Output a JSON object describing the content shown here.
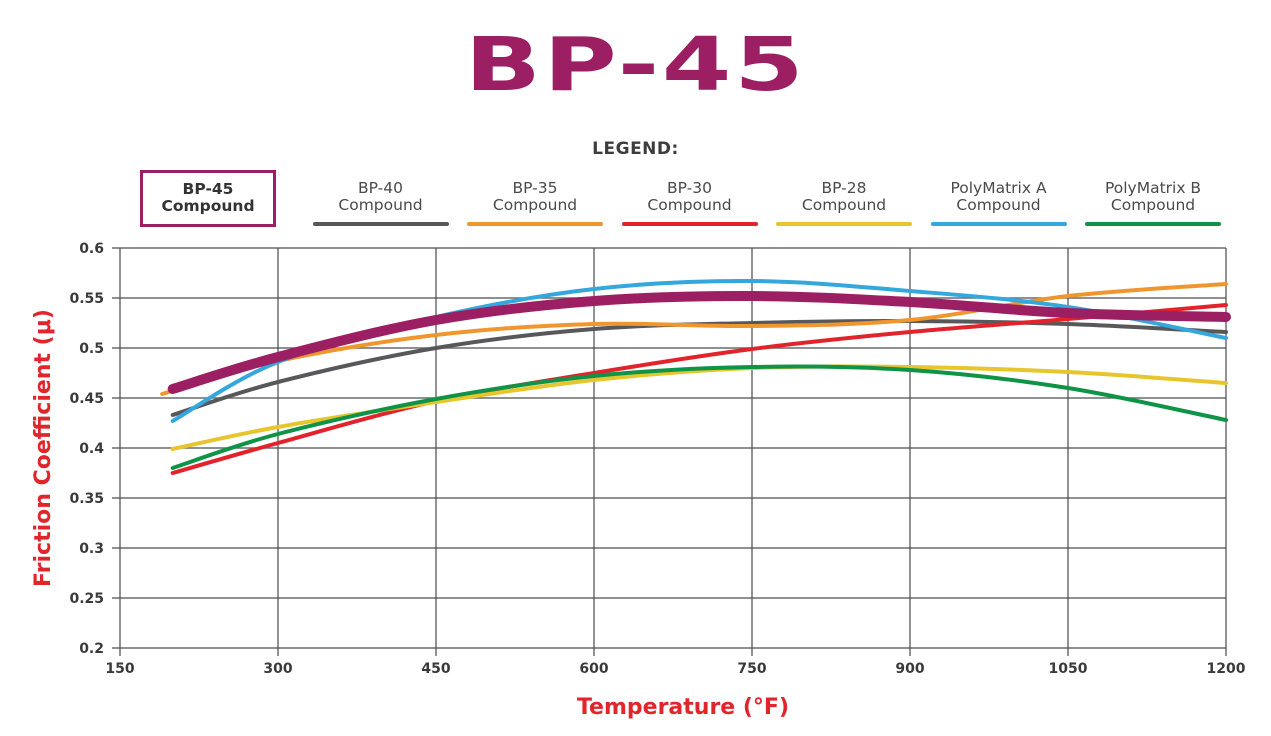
{
  "chart_data": {
    "type": "line",
    "title": "BP-45",
    "legend_title": "LEGEND:",
    "legend_placement": "top",
    "xlabel": "Temperature (°F)",
    "ylabel": "Friction Coefficient (μ)",
    "xlim": [
      150,
      1200
    ],
    "ylim": [
      0.2,
      0.6
    ],
    "xticks": [
      "150",
      "300",
      "450",
      "600",
      "750",
      "900",
      "1050",
      "1200"
    ],
    "yticks": [
      "0.6",
      "0.55",
      "0.5",
      "0.45",
      "0.4",
      "0.35",
      "0.3",
      "0.25",
      "0.2"
    ],
    "grid": true,
    "series": [
      {
        "name": "BP-45 Compound",
        "line1": "BP-45",
        "line2": "Compound",
        "color": "#9c1f63",
        "highlighted": true,
        "x": [
          200,
          300,
          450,
          600,
          750,
          900,
          1050,
          1200
        ],
        "y": [
          0.459,
          0.491,
          0.528,
          0.547,
          0.552,
          0.546,
          0.535,
          0.531
        ]
      },
      {
        "name": "BP-40 Compound",
        "line1": "BP-40",
        "line2": "Compound",
        "color": "#58585a",
        "highlighted": false,
        "x": [
          200,
          300,
          450,
          600,
          750,
          900,
          1050,
          1200
        ],
        "y": [
          0.433,
          0.466,
          0.5,
          0.519,
          0.525,
          0.527,
          0.524,
          0.516
        ]
      },
      {
        "name": "BP-35 Compound",
        "line1": "BP-35",
        "line2": "Compound",
        "color": "#f0962e",
        "highlighted": false,
        "x": [
          190,
          300,
          450,
          600,
          750,
          900,
          1050,
          1200
        ],
        "y": [
          0.454,
          0.487,
          0.513,
          0.524,
          0.522,
          0.528,
          0.552,
          0.564
        ]
      },
      {
        "name": "BP-30 Compound",
        "line1": "BP-30",
        "line2": "Compound",
        "color": "#e3232b",
        "highlighted": false,
        "x": [
          200,
          300,
          450,
          600,
          750,
          900,
          1050,
          1200
        ],
        "y": [
          0.375,
          0.405,
          0.447,
          0.475,
          0.499,
          0.516,
          0.529,
          0.543
        ]
      },
      {
        "name": "BP-28 Compound",
        "line1": "BP-28",
        "line2": "Compound",
        "color": "#e6c62c",
        "highlighted": false,
        "x": [
          200,
          300,
          450,
          600,
          750,
          900,
          1050,
          1200
        ],
        "y": [
          0.399,
          0.421,
          0.446,
          0.468,
          0.48,
          0.481,
          0.476,
          0.465
        ]
      },
      {
        "name": "PolyMatrix A Compound",
        "line1": "PolyMatrix A",
        "line2": "Compound",
        "color": "#34a7dc",
        "highlighted": false,
        "x": [
          200,
          300,
          450,
          600,
          750,
          900,
          1050,
          1200
        ],
        "y": [
          0.427,
          0.486,
          0.531,
          0.559,
          0.567,
          0.557,
          0.541,
          0.51
        ]
      },
      {
        "name": "PolyMatrix B Compound",
        "line1": "PolyMatrix B",
        "line2": "Compound",
        "color": "#0f9447",
        "highlighted": false,
        "x": [
          200,
          300,
          450,
          600,
          750,
          900,
          1050,
          1200
        ],
        "y": [
          0.38,
          0.414,
          0.449,
          0.472,
          0.481,
          0.478,
          0.46,
          0.428
        ]
      }
    ]
  }
}
